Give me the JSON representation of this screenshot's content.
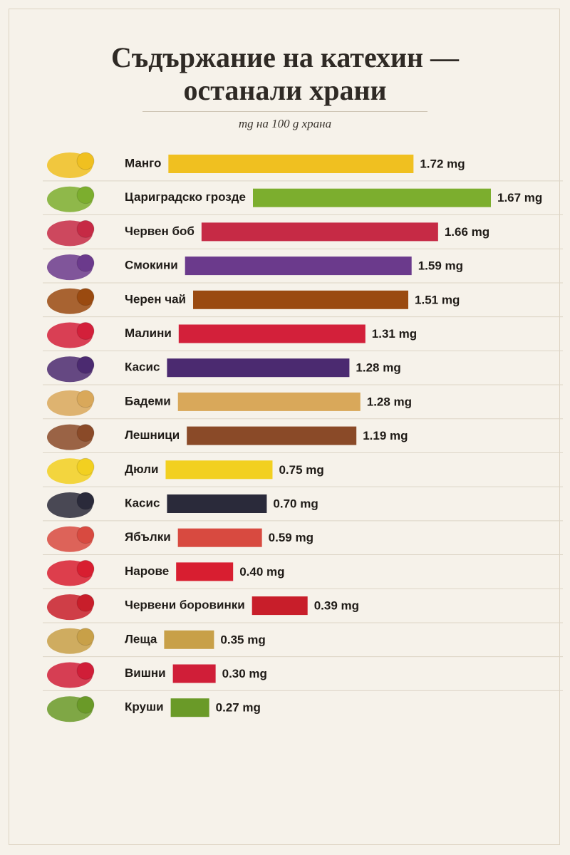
{
  "chart_data": {
    "type": "bar",
    "orientation": "horizontal",
    "title": "Съдържание на катехин — останали храни",
    "subtitle": "mg на 100 g храна",
    "categories": [
      "Манго",
      "Цариградско грозде",
      "Червен боб",
      "Смокини",
      "Черен чай",
      "Малини",
      "Касис",
      "Бадеми",
      "Лешници",
      "Дюли",
      "Касис",
      "Ябълки",
      "Нарове",
      "Червени боровинки",
      "Леща",
      "Вишни",
      "Круши"
    ],
    "values": [
      1.72,
      1.67,
      1.66,
      1.59,
      1.51,
      1.31,
      1.28,
      1.28,
      1.19,
      0.75,
      0.7,
      0.59,
      0.4,
      0.39,
      0.35,
      0.3,
      0.27
    ],
    "value_labels": [
      "1.72 mg",
      "1.67 mg",
      "1.66 mg",
      "1.59 mg",
      "1.51 mg",
      "1.31 mg",
      "1.28 mg",
      "1.28 mg",
      "1.19 mg",
      "0.75 mg",
      "0.70 mg",
      "0.59 mg",
      "0.40 mg",
      "0.39 mg",
      "0.35 mg",
      "0.30 mg",
      "0.27 mg"
    ],
    "colors": [
      "#f0c020",
      "#7cae2e",
      "#c62a45",
      "#6b3a8c",
      "#9a4a10",
      "#d3203a",
      "#4b2a70",
      "#d9a85a",
      "#8a4a28",
      "#f2d020",
      "#2a2a3a",
      "#d84a40",
      "#d81e30",
      "#c81e2a",
      "#c8a048",
      "#d01e38",
      "#6a9a28"
    ]
  }
}
